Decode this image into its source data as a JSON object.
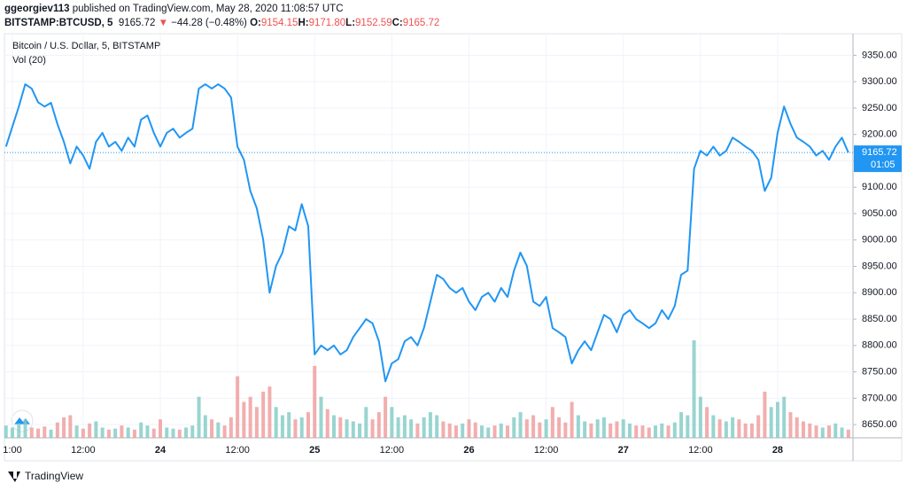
{
  "header": {
    "author": "ggeorgiev113",
    "published": "published on TradingView.com, May 28, 2020 11:08:57 UTC",
    "symbol": "BITSTAMP:BTCUSD, 5",
    "last": "9165.72",
    "arrow": "▼",
    "change": "−44.28 (−0.48%)",
    "ohlc": [
      {
        "label": "O:",
        "value": "9154.15"
      },
      {
        "label": "H:",
        "value": "9171.80"
      },
      {
        "label": "L:",
        "value": "9152.59"
      },
      {
        "label": "C:",
        "value": "9165.72"
      }
    ]
  },
  "footer": {
    "brand": "TradingView"
  },
  "chart_data": {
    "type": "line",
    "categories": [
      null,
      "1:00",
      null,
      null,
      null,
      null,
      null,
      null,
      null,
      null,
      null,
      null,
      "12:00",
      null,
      null,
      null,
      null,
      null,
      null,
      null,
      null,
      null,
      null,
      null,
      "24",
      null,
      null,
      null,
      null,
      null,
      null,
      null,
      null,
      null,
      null,
      null,
      "12:00",
      null,
      null,
      null,
      null,
      null,
      null,
      null,
      null,
      null,
      null,
      null,
      "25",
      null,
      null,
      null,
      null,
      null,
      null,
      null,
      null,
      null,
      null,
      null,
      "12:00",
      null,
      null,
      null,
      null,
      null,
      null,
      null,
      null,
      null,
      null,
      null,
      "26",
      null,
      null,
      null,
      null,
      null,
      null,
      null,
      null,
      null,
      null,
      null,
      "12:00",
      null,
      null,
      null,
      null,
      null,
      null,
      null,
      null,
      null,
      null,
      null,
      "27",
      null,
      null,
      null,
      null,
      null,
      null,
      null,
      null,
      null,
      null,
      null,
      "12:00",
      null,
      null,
      null,
      null,
      null,
      null,
      null,
      null,
      null,
      null,
      null,
      "28",
      null,
      null,
      null,
      null,
      null,
      null,
      null,
      null,
      null,
      null,
      null
    ],
    "series": [
      {
        "name": "Bitcoin / U.S. Dollar, 5, BITSTAMP",
        "color": "#2196f3",
        "values": [
          9177,
          9215,
          9253,
          9295,
          9287,
          9261,
          9253,
          9260,
          9220,
          9186,
          9145,
          9177,
          9160,
          9135,
          9186,
          9203,
          9177,
          9186,
          9169,
          9194,
          9177,
          9228,
          9236,
          9203,
          9177,
          9203,
          9211,
          9194,
          9203,
          9211,
          9287,
          9295,
          9287,
          9295,
          9287,
          9270,
          9177,
          9152,
          9093,
          9060,
          9001,
          8900,
          8951,
          8976,
          9026,
          9018,
          9068,
          9026,
          8783,
          8800,
          8791,
          8800,
          8783,
          8791,
          8816,
          8833,
          8850,
          8842,
          8808,
          8732,
          8766,
          8774,
          8808,
          8816,
          8800,
          8833,
          8883,
          8934,
          8926,
          8909,
          8900,
          8909,
          8883,
          8867,
          8892,
          8900,
          8883,
          8909,
          8892,
          8942,
          8976,
          8951,
          8883,
          8875,
          8892,
          8833,
          8825,
          8816,
          8766,
          8791,
          8808,
          8791,
          8825,
          8858,
          8850,
          8825,
          8858,
          8867,
          8850,
          8842,
          8833,
          8842,
          8867,
          8850,
          8875,
          8934,
          8942,
          9135,
          9169,
          9160,
          9177,
          9160,
          9169,
          9194,
          9186,
          9177,
          9169,
          9152,
          9093,
          9118,
          9203,
          9253,
          9220,
          9194,
          9186,
          9177,
          9160,
          9169,
          9152,
          9177,
          9194,
          9165.72
        ]
      }
    ],
    "volume": {
      "name": "Vol (20)",
      "up_color": "#80cbc4",
      "down_color": "#ef9a9a",
      "values": [
        12,
        10,
        14,
        18,
        10,
        9,
        11,
        8,
        15,
        20,
        22,
        12,
        9,
        14,
        16,
        10,
        8,
        9,
        12,
        10,
        8,
        15,
        12,
        9,
        18,
        10,
        9,
        8,
        10,
        12,
        40,
        22,
        18,
        15,
        12,
        20,
        60,
        35,
        40,
        30,
        45,
        50,
        30,
        22,
        25,
        18,
        20,
        25,
        70,
        40,
        28,
        22,
        20,
        18,
        16,
        14,
        30,
        18,
        25,
        40,
        30,
        20,
        22,
        18,
        14,
        20,
        25,
        22,
        16,
        14,
        12,
        14,
        18,
        15,
        12,
        10,
        12,
        14,
        12,
        20,
        25,
        18,
        22,
        15,
        18,
        30,
        20,
        15,
        35,
        22,
        16,
        14,
        18,
        20,
        14,
        16,
        18,
        14,
        12,
        12,
        10,
        12,
        14,
        12,
        15,
        25,
        22,
        95,
        40,
        30,
        22,
        18,
        16,
        20,
        18,
        14,
        14,
        22,
        45,
        30,
        35,
        40,
        25,
        20,
        16,
        14,
        12,
        10,
        12,
        14,
        10,
        8
      ]
    },
    "ylim": [
      8625,
      9391
    ],
    "yticks": [
      {
        "value": 8650,
        "label": "8650.00"
      },
      {
        "value": 8700,
        "label": "8700.00"
      },
      {
        "value": 8750,
        "label": "8750.00"
      },
      {
        "value": 8800,
        "label": "8800.00"
      },
      {
        "value": 8850,
        "label": "8850.00"
      },
      {
        "value": 8900,
        "label": "8900.00"
      },
      {
        "value": 8950,
        "label": "8950.00"
      },
      {
        "value": 9000,
        "label": "9000.00"
      },
      {
        "value": 9050,
        "label": "9050.00"
      },
      {
        "value": 9100,
        "label": "9100.00"
      },
      {
        "value": 9150,
        "label": "9150.00"
      },
      {
        "value": 9200,
        "label": "9200.00"
      },
      {
        "value": 9250,
        "label": "9250.00"
      },
      {
        "value": 9300,
        "label": "9300.00"
      },
      {
        "value": 9350,
        "label": "9350.00"
      }
    ],
    "countdown": "01:05",
    "grid": true
  }
}
